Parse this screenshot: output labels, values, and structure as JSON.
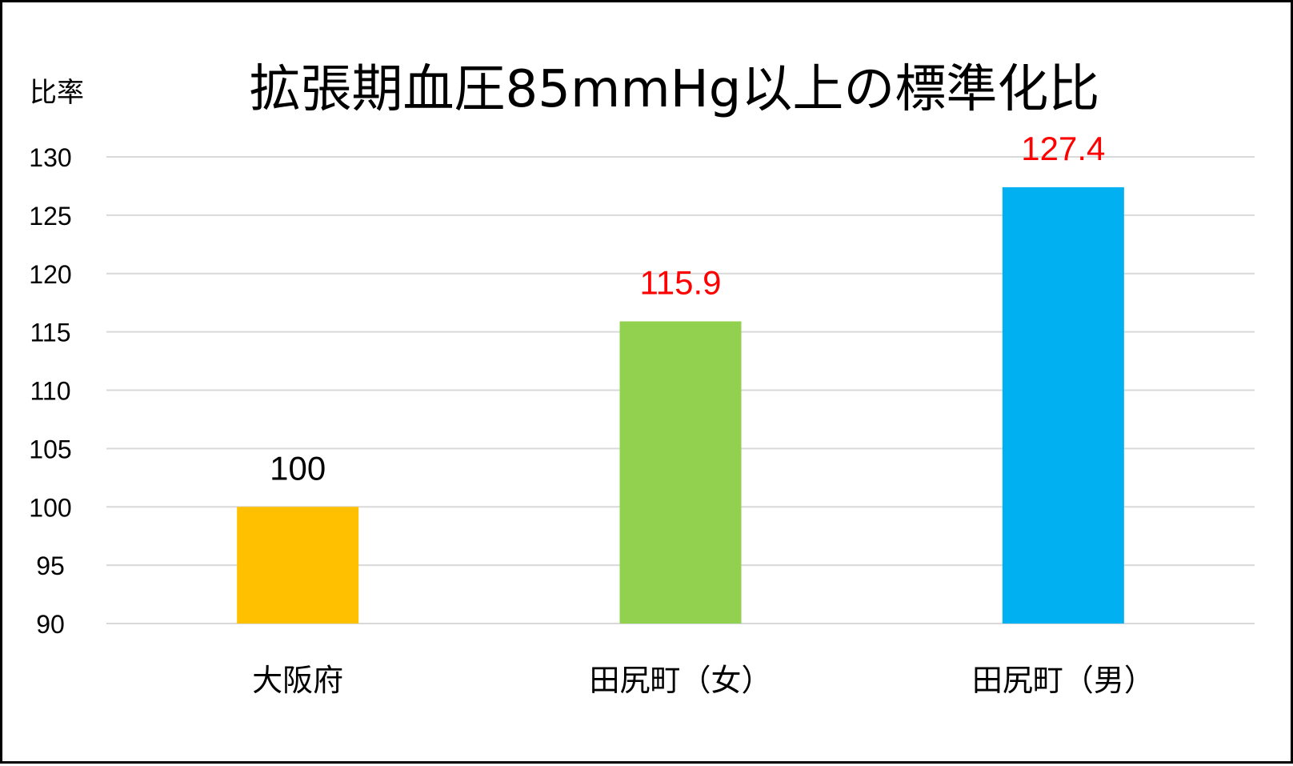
{
  "chart_data": {
    "type": "bar",
    "title": "拡張期血圧85mmHg以上の標準化比",
    "ylabel": "比率",
    "xlabel": "",
    "categories": [
      "大阪府",
      "田尻町（女）",
      "田尻町（男）"
    ],
    "values": [
      100,
      115.9,
      127.4
    ],
    "value_labels": [
      "100",
      "115.9",
      "127.4"
    ],
    "bar_colors": [
      "#FFC000",
      "#92D050",
      "#00B0F0"
    ],
    "label_colors": [
      "#000000",
      "#FF0000",
      "#FF0000"
    ],
    "ylim": [
      90,
      130
    ],
    "yticks": [
      90,
      95,
      100,
      105,
      110,
      115,
      120,
      125,
      130
    ],
    "grid": true,
    "gridline_color": "#D9D9D9"
  }
}
